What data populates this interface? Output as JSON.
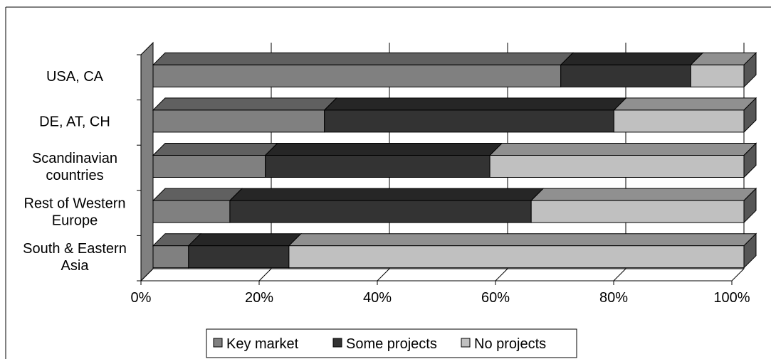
{
  "chart_data": {
    "type": "bar",
    "orientation": "horizontal",
    "stacked": "percent",
    "three_d": true,
    "categories": [
      "USA, CA",
      "DE, AT, CH",
      "Scandinavian countries",
      "Rest of Western Europe",
      "South & Eastern Asia"
    ],
    "category_lines": [
      [
        "USA, CA"
      ],
      [
        "DE, AT, CH"
      ],
      [
        "Scandinavian",
        "countries"
      ],
      [
        "Rest of Western",
        "Europe"
      ],
      [
        "South & Eastern",
        "Asia"
      ]
    ],
    "series": [
      {
        "name": "Key market",
        "color": "#808080",
        "values": [
          69,
          29,
          19,
          13,
          6
        ]
      },
      {
        "name": "Some projects",
        "color": "#333333",
        "values": [
          22,
          49,
          38,
          51,
          17
        ]
      },
      {
        "name": "No projects",
        "color": "#c0c0c0",
        "values": [
          9,
          22,
          43,
          36,
          77
        ]
      }
    ],
    "xlim": [
      0,
      100
    ],
    "x_ticks": [
      "0%",
      "20%",
      "40%",
      "60%",
      "80%",
      "100%"
    ],
    "grid": true,
    "legend_position": "bottom"
  }
}
